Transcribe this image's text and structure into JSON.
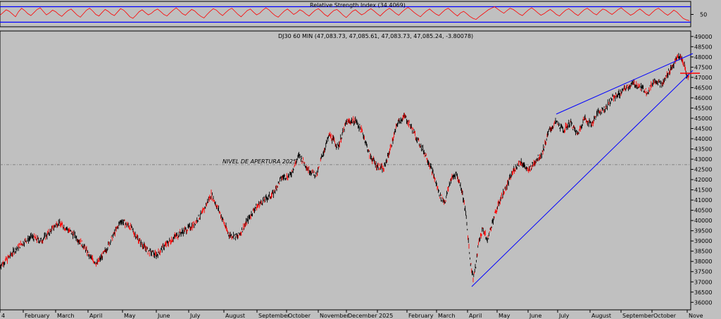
{
  "chart_data": [
    {
      "type": "line",
      "title": "Relative Strength Index (34.4069)",
      "y_ticks": [
        50
      ],
      "levels": [
        30,
        70
      ],
      "ylim": [
        20,
        80
      ],
      "values": [
        48,
        55,
        62,
        58,
        51,
        44,
        57,
        66,
        60,
        52,
        47,
        55,
        63,
        67,
        58,
        49,
        54,
        61,
        57,
        50,
        45,
        53,
        60,
        64,
        56,
        48,
        43,
        52,
        61,
        66,
        59,
        50,
        46,
        55,
        63,
        58,
        51,
        47,
        56,
        65,
        61,
        53,
        44,
        40,
        48,
        57,
        62,
        55,
        49,
        53,
        60,
        64,
        57,
        50,
        46,
        54,
        61,
        67,
        60,
        52,
        48,
        56,
        63,
        59,
        51,
        45,
        41,
        50,
        58,
        65,
        61,
        53,
        47,
        55,
        62,
        66,
        58,
        50,
        44,
        52,
        60,
        64,
        56,
        49,
        53,
        61,
        67,
        62,
        54,
        47,
        43,
        51,
        59,
        64,
        57,
        50,
        55,
        62,
        58,
        51,
        46,
        54,
        61,
        65,
        58,
        50,
        45,
        53,
        60,
        63,
        56,
        48,
        42,
        50,
        58,
        62,
        55,
        49,
        53,
        60,
        65,
        59,
        52,
        46,
        54,
        61,
        66,
        60,
        53,
        48,
        56,
        63,
        68,
        62,
        55,
        49,
        44,
        52,
        59,
        64,
        57,
        51,
        47,
        55,
        62,
        66,
        59,
        52,
        46,
        54,
        58,
        52,
        45,
        40,
        37,
        44,
        50,
        56,
        62,
        66,
        70,
        64,
        58,
        53,
        60,
        66,
        63,
        57,
        51,
        47,
        55,
        62,
        67,
        61,
        54,
        48,
        52,
        58,
        63,
        57,
        50,
        46,
        54,
        61,
        65,
        59,
        52,
        47,
        55,
        62,
        66,
        60,
        53,
        49,
        57,
        64,
        61,
        55,
        50,
        56,
        63,
        67,
        60,
        54,
        48,
        52,
        59,
        64,
        58,
        51,
        47,
        55,
        62,
        66,
        60,
        53,
        48,
        54,
        61,
        56,
        48,
        40,
        36,
        34
      ]
    },
    {
      "type": "line",
      "title": "DJ30 60 MIN (47,083.73, 47,085.61, 47,083.73, 47,085.24, -3.80078)",
      "annotation": "NIVEL DE APERTURA 2025",
      "reference_level": 42730,
      "ylim": [
        35700,
        49200
      ],
      "y_ticks": [
        36000,
        36500,
        37000,
        37500,
        38000,
        38500,
        39000,
        39500,
        40000,
        40500,
        41000,
        41500,
        42000,
        42500,
        43000,
        43500,
        44000,
        44500,
        45000,
        45500,
        46000,
        46500,
        47000,
        47500,
        48000,
        48500,
        49000
      ],
      "x_labels": [
        "4",
        "February",
        "March",
        "April",
        "May",
        "June",
        "July",
        "August",
        "September",
        "October",
        "November",
        "December",
        "2025",
        "February",
        "March",
        "April",
        "May",
        "June",
        "July",
        "August",
        "September",
        "October",
        "Nove"
      ],
      "x": [
        0,
        10,
        20,
        32,
        45,
        58,
        70,
        82,
        95,
        108,
        118,
        128,
        138,
        148,
        160,
        172,
        185,
        198,
        210,
        222,
        235,
        248,
        262,
        275,
        288,
        300,
        312,
        325,
        338,
        350,
        362,
        375,
        388,
        400,
        412,
        425,
        438,
        450,
        456,
        468,
        480,
        492,
        505,
        515,
        525,
        535,
        545,
        555,
        565,
        575,
        585,
        595,
        605,
        615,
        625,
        632,
        640,
        648,
        656,
        662,
        668,
        672,
        676,
        680,
        686,
        692,
        700,
        710,
        720,
        730,
        740,
        750,
        760,
        770,
        780,
        790,
        800,
        810,
        820,
        830,
        840,
        850,
        860,
        870,
        880,
        890,
        900,
        910,
        920,
        930,
        940,
        950,
        958,
        963,
        968,
        972,
        976,
        980
      ],
      "values": [
        37800,
        38100,
        38500,
        38900,
        39200,
        39000,
        39400,
        39900,
        39600,
        39200,
        38800,
        38200,
        37900,
        38400,
        39200,
        40000,
        39700,
        39000,
        38500,
        38300,
        38800,
        39200,
        39500,
        39800,
        40400,
        41300,
        40400,
        39300,
        39200,
        39900,
        40600,
        41000,
        41300,
        42100,
        42200,
        43200,
        42500,
        42200,
        43000,
        44200,
        43600,
        44800,
        44900,
        44300,
        43200,
        42700,
        42500,
        43600,
        44800,
        45100,
        44500,
        43800,
        43200,
        42300,
        41200,
        40900,
        42000,
        42300,
        41500,
        40200,
        38000,
        37200,
        37800,
        39000,
        39600,
        39000,
        40000,
        41000,
        41700,
        42500,
        42900,
        42400,
        42900,
        43300,
        44400,
        44800,
        44400,
        44800,
        44200,
        45000,
        44700,
        45300,
        45500,
        46000,
        46200,
        46500,
        46700,
        46500,
        46300,
        46900,
        46600,
        47300,
        47700,
        48050,
        47900,
        47600,
        47000,
        47080
      ]
    }
  ],
  "colors": {
    "background": "#c0c0c0",
    "rsi_line": "#ff0000",
    "rsi_level_line": "#0000ff",
    "price_candles": "#000000",
    "price_down_candles": "#ff0000",
    "trendline": "#0000ff",
    "reference_line": "#707070"
  }
}
